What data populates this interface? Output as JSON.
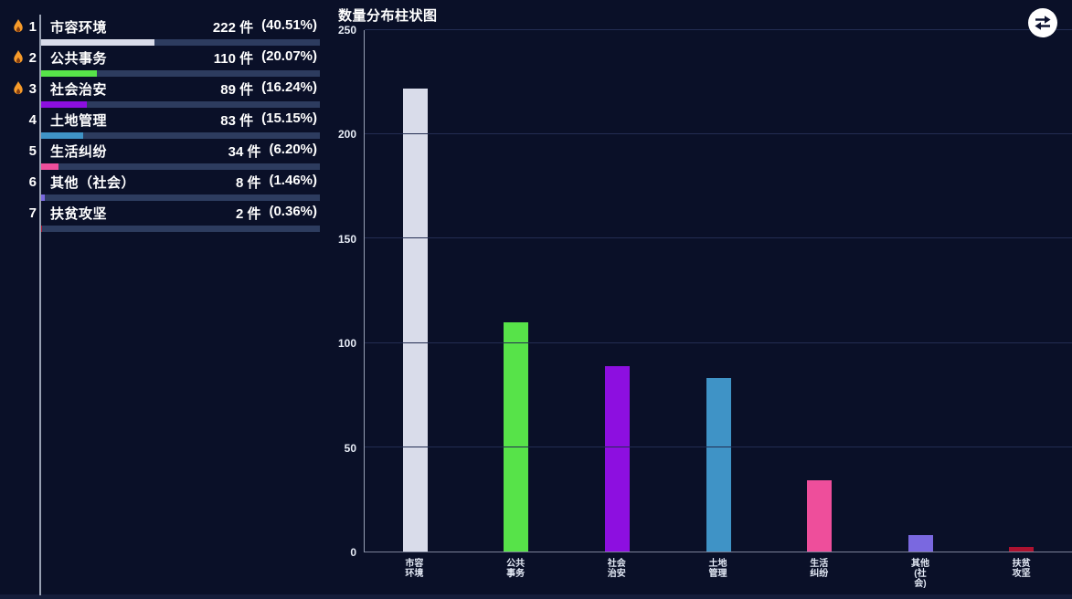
{
  "page": {
    "background": "#0a1028",
    "accent_track": "#2d3c5f"
  },
  "ranking": {
    "unit": "件",
    "items": [
      {
        "rank": "1",
        "hot": true,
        "label": "市容环境",
        "count_text": "222 件",
        "pct_text": "(40.51%)",
        "pct": 40.51,
        "color": "#d9dcea"
      },
      {
        "rank": "2",
        "hot": true,
        "label": "公共事务",
        "count_text": "110 件",
        "pct_text": "(20.07%)",
        "pct": 20.07,
        "color": "#57e349"
      },
      {
        "rank": "3",
        "hot": true,
        "label": "社会治安",
        "count_text": "89 件",
        "pct_text": "(16.24%)",
        "pct": 16.24,
        "color": "#8d0fe0"
      },
      {
        "rank": "4",
        "hot": false,
        "label": "土地管理",
        "count_text": "83 件",
        "pct_text": "(15.15%)",
        "pct": 15.15,
        "color": "#3f93c6"
      },
      {
        "rank": "5",
        "hot": false,
        "label": "生活纠纷",
        "count_text": "34 件",
        "pct_text": "(6.20%)",
        "pct": 6.2,
        "color": "#ee4e9b"
      },
      {
        "rank": "6",
        "hot": false,
        "label": "其他（社会）",
        "count_text": "8 件",
        "pct_text": "(1.46%)",
        "pct": 1.46,
        "color": "#7a68e0"
      },
      {
        "rank": "7",
        "hot": false,
        "label": "扶贫攻坚",
        "count_text": "2 件",
        "pct_text": "(0.36%)",
        "pct": 0.36,
        "color": "#ad1230"
      }
    ]
  },
  "chart": {
    "title": "数量分布柱状图"
  },
  "chart_data": {
    "type": "bar",
    "title": "数量分布柱状图",
    "categories": [
      "市容环境",
      "公共事务",
      "社会治安",
      "土地管理",
      "生活纠纷",
      "其他(社会)",
      "扶贫攻坚"
    ],
    "x_tick_labels": [
      "市容\n环境",
      "公共\n事务",
      "社会\n治安",
      "土地\n管理",
      "生活\n纠纷",
      "其他\n(社\n会)",
      "扶贫\n攻坚"
    ],
    "values": [
      222,
      110,
      89,
      83,
      34,
      8,
      2
    ],
    "colors": [
      "#d9dcea",
      "#57e349",
      "#8d0fe0",
      "#3f93c6",
      "#ee4e9b",
      "#7a68e0",
      "#ad1230"
    ],
    "xlabel": "",
    "ylabel": "",
    "ylim": [
      0,
      250
    ],
    "y_ticks": [
      0,
      50,
      100,
      150,
      200,
      250
    ],
    "grid": true,
    "legend": "none"
  },
  "toolbox": {
    "toggle_label": "切换"
  },
  "icons": {
    "flame": "flame-icon",
    "swap": "swap-arrows-icon"
  }
}
